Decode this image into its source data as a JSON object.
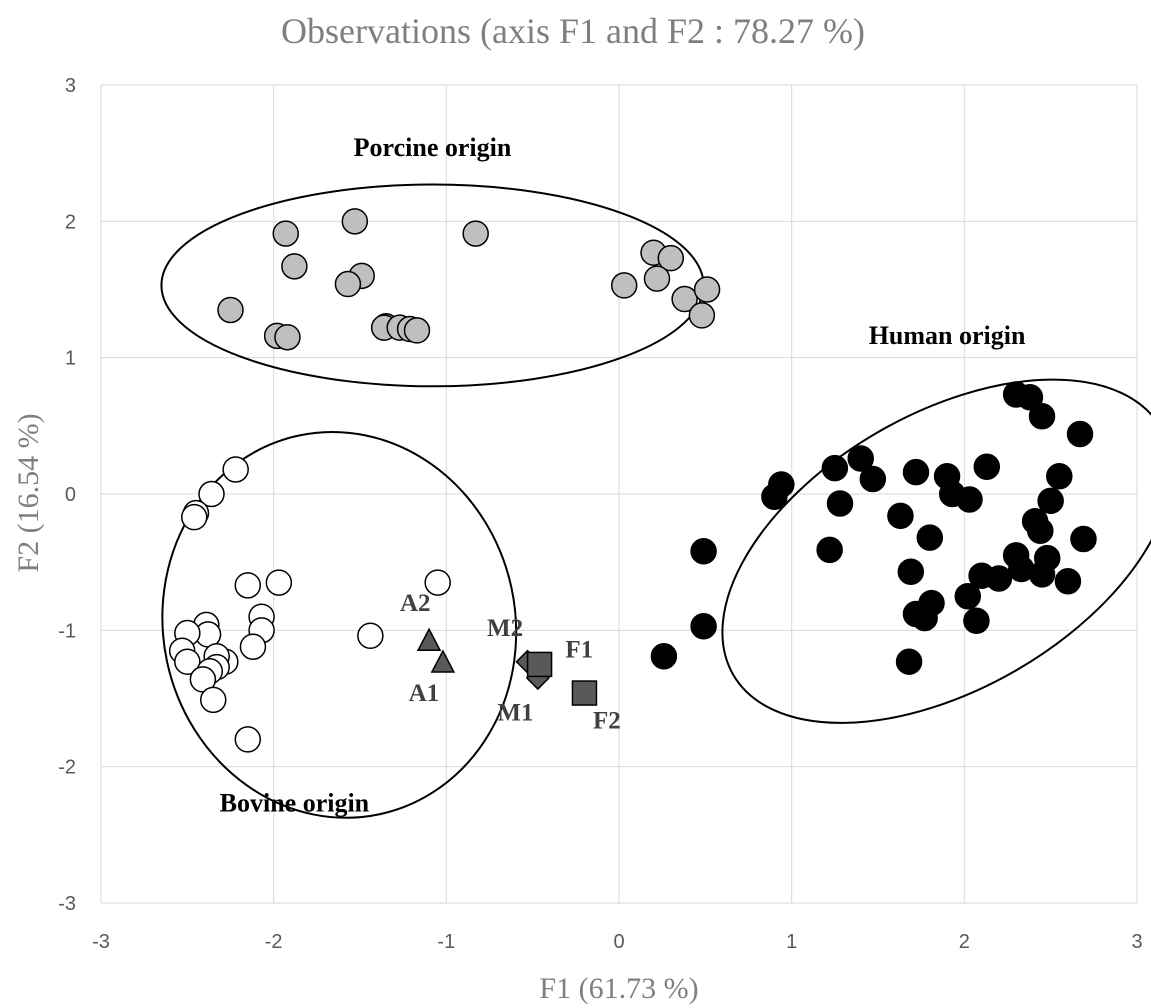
{
  "chart_data": {
    "type": "scatter",
    "title": "Observations (axis F1 and F2 : 78.27 %)",
    "xlabel": "F1 (61.73 %)",
    "ylabel": "F2 (16.54 %)",
    "xlim": [
      -3,
      3
    ],
    "ylim": [
      -3,
      3
    ],
    "x_ticks": [
      "-3",
      "-2",
      "-1",
      "0",
      "1",
      "2",
      "3"
    ],
    "y_ticks": [
      "-3",
      "-2",
      "-1",
      "0",
      "1",
      "2",
      "3"
    ],
    "grid": true,
    "colors": {
      "porcine": "#bfbfbf",
      "bovine": "#ffffff",
      "human": "#000000",
      "samples": "#595959"
    },
    "groups": [
      {
        "label": "Porcine origin",
        "label_pos": [
          -1.08,
          2.48
        ],
        "ellipse": {
          "cx": -1.08,
          "cy": 1.53,
          "rx": 1.57,
          "ry": 0.74
        },
        "points": [
          [
            -1.93,
            1.91
          ],
          [
            -1.53,
            2.0
          ],
          [
            -0.83,
            1.91
          ],
          [
            -1.88,
            1.67
          ],
          [
            -1.49,
            1.6
          ],
          [
            -1.57,
            1.54
          ],
          [
            -2.25,
            1.35
          ],
          [
            -1.98,
            1.16
          ],
          [
            -1.92,
            1.15
          ],
          [
            -1.35,
            1.23
          ],
          [
            -1.36,
            1.22
          ],
          [
            -1.27,
            1.22
          ],
          [
            -1.21,
            1.21
          ],
          [
            -1.17,
            1.2
          ],
          [
            0.2,
            1.77
          ],
          [
            0.3,
            1.73
          ],
          [
            0.22,
            1.58
          ],
          [
            0.03,
            1.53
          ],
          [
            0.38,
            1.43
          ],
          [
            0.51,
            1.5
          ],
          [
            0.48,
            1.31
          ]
        ]
      },
      {
        "label": "Bovine origin",
        "label_pos": [
          -1.88,
          -2.33
        ],
        "ellipse": {
          "cx": -1.62,
          "cy": -0.96,
          "rx": 1.02,
          "ry": 1.42,
          "rotate": -12
        },
        "points": [
          [
            -2.22,
            0.18
          ],
          [
            -2.36,
            0.0
          ],
          [
            -2.45,
            -0.14
          ],
          [
            -2.46,
            -0.17
          ],
          [
            -2.15,
            -0.67
          ],
          [
            -1.97,
            -0.65
          ],
          [
            -1.05,
            -0.65
          ],
          [
            -2.07,
            -0.9
          ],
          [
            -2.07,
            -1.0
          ],
          [
            -2.12,
            -1.12
          ],
          [
            -1.44,
            -1.04
          ],
          [
            -2.39,
            -0.96
          ],
          [
            -2.38,
            -1.03
          ],
          [
            -2.5,
            -1.02
          ],
          [
            -2.53,
            -1.15
          ],
          [
            -2.5,
            -1.23
          ],
          [
            -2.28,
            -1.23
          ],
          [
            -2.33,
            -1.19
          ],
          [
            -2.33,
            -1.27
          ],
          [
            -2.37,
            -1.3
          ],
          [
            -2.41,
            -1.36
          ],
          [
            -2.35,
            -1.51
          ],
          [
            -2.15,
            -1.8
          ]
        ]
      },
      {
        "label": "Human origin",
        "label_pos": [
          1.9,
          1.1
        ],
        "ellipse": {
          "cx": 1.9,
          "cy": -0.42,
          "rx": 1.43,
          "ry": 1.01,
          "rotate": -30
        },
        "points": [
          [
            2.3,
            0.73
          ],
          [
            2.38,
            0.71
          ],
          [
            2.45,
            0.57
          ],
          [
            2.67,
            0.44
          ],
          [
            1.25,
            0.19
          ],
          [
            1.4,
            0.26
          ],
          [
            1.47,
            0.11
          ],
          [
            1.72,
            0.16
          ],
          [
            1.9,
            0.13
          ],
          [
            1.93,
            0.0
          ],
          [
            2.03,
            -0.04
          ],
          [
            2.13,
            0.2
          ],
          [
            2.55,
            0.13
          ],
          [
            2.5,
            -0.05
          ],
          [
            0.94,
            0.07
          ],
          [
            0.9,
            -0.02
          ],
          [
            1.28,
            -0.07
          ],
          [
            1.63,
            -0.16
          ],
          [
            2.41,
            -0.2
          ],
          [
            2.44,
            -0.27
          ],
          [
            1.8,
            -0.32
          ],
          [
            2.69,
            -0.33
          ],
          [
            1.22,
            -0.41
          ],
          [
            0.49,
            -0.42
          ],
          [
            2.3,
            -0.45
          ],
          [
            2.48,
            -0.47
          ],
          [
            2.33,
            -0.55
          ],
          [
            1.69,
            -0.57
          ],
          [
            2.1,
            -0.6
          ],
          [
            2.2,
            -0.62
          ],
          [
            2.45,
            -0.59
          ],
          [
            2.6,
            -0.64
          ],
          [
            2.02,
            -0.75
          ],
          [
            1.81,
            -0.8
          ],
          [
            1.72,
            -0.88
          ],
          [
            1.77,
            -0.91
          ],
          [
            2.07,
            -0.93
          ],
          [
            0.49,
            -0.97
          ],
          [
            1.68,
            -1.23
          ],
          [
            0.26,
            -1.19
          ]
        ]
      }
    ],
    "samples": [
      {
        "label": "A2",
        "marker": "triangle",
        "x": -1.1,
        "y": -1.08,
        "label_pos": [
          -1.18,
          -0.86
        ]
      },
      {
        "label": "A1",
        "marker": "triangle",
        "x": -1.02,
        "y": -1.24,
        "label_pos": [
          -1.13,
          -1.52
        ]
      },
      {
        "label": "M2",
        "marker": "diamond",
        "x": -0.53,
        "y": -1.23,
        "label_pos": [
          -0.66,
          -1.04
        ]
      },
      {
        "label": "M1",
        "marker": "diamond",
        "x": -0.47,
        "y": -1.35,
        "label_pos": [
          -0.6,
          -1.66
        ]
      },
      {
        "label": "F1",
        "marker": "square",
        "x": -0.46,
        "y": -1.25,
        "label_pos": [
          -0.23,
          -1.2
        ]
      },
      {
        "label": "F2",
        "marker": "square",
        "x": -0.2,
        "y": -1.46,
        "label_pos": [
          -0.07,
          -1.72
        ]
      }
    ]
  }
}
